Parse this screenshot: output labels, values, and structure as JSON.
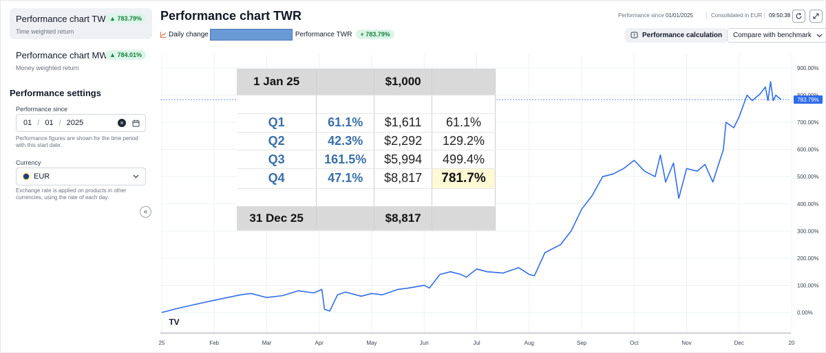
{
  "sidebar": {
    "charts": [
      {
        "title": "Performance chart TWR",
        "subtitle": "Time weighted return",
        "badge": "▲ 783.79%"
      },
      {
        "title": "Performance chart MWR",
        "subtitle": "Money weighted return",
        "badge": "▲ 784.01%"
      }
    ],
    "settings_title": "Performance settings",
    "since_label": "Performance since",
    "since_day": "01",
    "since_month": "01",
    "since_year": "2025",
    "date_sep": "/",
    "since_hint": "Performance figures are shown for the time period with this start date.",
    "currency_label": "Currency",
    "currency_value": "EUR",
    "currency_hint": "Exchange rate is applied on products in other currencies, using the rate of each day.",
    "collapse_glyph": "«"
  },
  "header": {
    "title": "Performance chart TWR",
    "legend_daily": "Daily change",
    "legend_twr": "Performance TWR",
    "legend_badge": "+ 783.79%",
    "perf_since_label": "Performance since",
    "perf_since_value": "01/01/2025",
    "consolidated": "Consolidated in EUR",
    "time": "09:50:38",
    "perf_calc_btn": "Performance calculation",
    "compare_btn": "Compare with benchmark"
  },
  "colors": {
    "line": "#2f6bea",
    "badge_bg": "#dcf5e8",
    "badge_text": "#15803d",
    "highlight": "#fff9d6"
  },
  "icons": {
    "refresh": "refresh-icon",
    "expand": "expand-icon",
    "calendar": "calendar-icon",
    "clear": "clear-icon"
  },
  "table": {
    "start": {
      "date": "1 Jan 25",
      "value": "$1,000"
    },
    "rows": [
      {
        "q": "Q1",
        "pct": "61.1%",
        "value": "$1,611",
        "cum": "61.1%"
      },
      {
        "q": "Q2",
        "pct": "42.3%",
        "value": "$2,292",
        "cum": "129.2%"
      },
      {
        "q": "Q3",
        "pct": "161.5%",
        "value": "$5,994",
        "cum": "499.4%"
      },
      {
        "q": "Q4",
        "pct": "47.1%",
        "value": "$8,817",
        "cum": "781.7%"
      }
    ],
    "end": {
      "date": "31 Dec 25",
      "value": "$8,817"
    }
  },
  "chart_data": {
    "type": "line",
    "title": "Performance chart TWR",
    "xlabel": "",
    "ylabel": "",
    "x_ticks": [
      "25",
      "Feb",
      "Mar",
      "Apr",
      "May",
      "Jun",
      "Jul",
      "Aug",
      "Sep",
      "Oct",
      "Nov",
      "Dec",
      "20"
    ],
    "y_ticks": [
      "0.00%",
      "100.00%",
      "200.00%",
      "300.00%",
      "400.00%",
      "500.00%",
      "600.00%",
      "700.00%",
      "800.00%",
      "900.00%"
    ],
    "ylim": [
      -50,
      950
    ],
    "xlim": [
      0,
      12
    ],
    "current_value": 783.79,
    "current_label": "783.79%",
    "series": [
      {
        "name": "Performance TWR",
        "x": [
          0,
          0.3,
          0.6,
          1,
          1.5,
          1.7,
          2,
          2.3,
          2.6,
          2.9,
          3.05,
          3.1,
          3.2,
          3.35,
          3.5,
          3.8,
          4,
          4.2,
          4.5,
          4.7,
          5,
          5.1,
          5.3,
          5.5,
          5.7,
          5.8,
          6,
          6.2,
          6.5,
          6.8,
          7,
          7.1,
          7.3,
          7.6,
          7.8,
          8,
          8.2,
          8.4,
          8.6,
          8.8,
          9,
          9.2,
          9.4,
          9.5,
          9.6,
          9.75,
          9.85,
          10,
          10.2,
          10.35,
          10.5,
          10.7,
          10.75,
          10.9,
          11,
          11.15,
          11.25,
          11.4,
          11.5,
          11.55,
          11.6,
          11.65,
          11.7,
          11.8
        ],
        "values": [
          0,
          15,
          28,
          45,
          65,
          70,
          55,
          62,
          80,
          72,
          85,
          12,
          5,
          65,
          75,
          60,
          70,
          65,
          85,
          90,
          100,
          90,
          140,
          150,
          140,
          130,
          160,
          150,
          145,
          165,
          140,
          135,
          220,
          250,
          300,
          380,
          430,
          500,
          510,
          530,
          560,
          520,
          500,
          580,
          480,
          550,
          420,
          530,
          520,
          545,
          480,
          600,
          700,
          680,
          720,
          800,
          780,
          805,
          830,
          780,
          850,
          780,
          800,
          783.79
        ]
      }
    ]
  }
}
